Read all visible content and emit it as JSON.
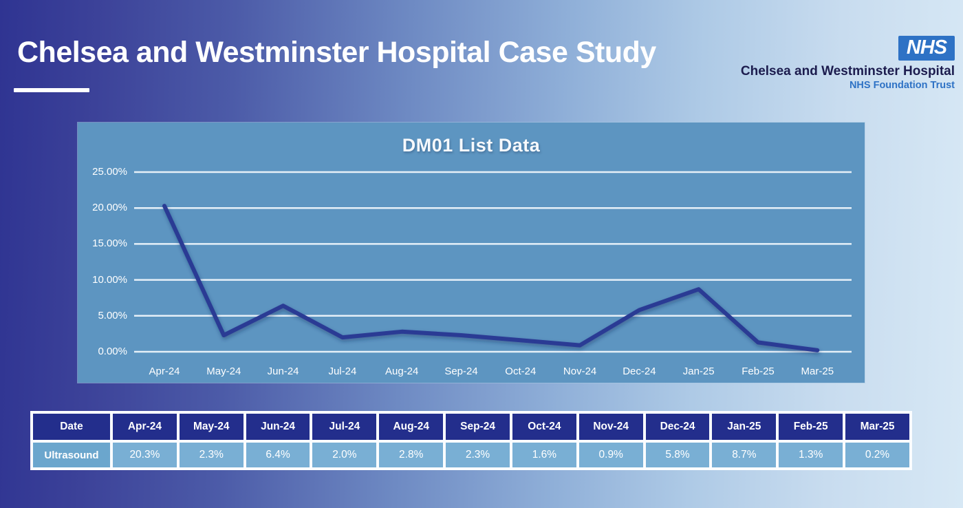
{
  "slide": {
    "title": "Chelsea and Westminster Hospital Case Study"
  },
  "nhs_logo": {
    "acronym": "NHS",
    "org_name": "Chelsea and Westminster Hospital",
    "org_subtitle": "NHS Foundation Trust",
    "logo_color": "#2e72c5"
  },
  "chart_data": {
    "type": "line",
    "title": "DM01 List Data",
    "categories": [
      "Apr-24",
      "May-24",
      "Jun-24",
      "Jul-24",
      "Aug-24",
      "Sep-24",
      "Oct-24",
      "Nov-24",
      "Dec-24",
      "Jan-25",
      "Feb-25",
      "Mar-25"
    ],
    "series": [
      {
        "name": "Ultrasound",
        "values": [
          20.3,
          2.3,
          6.4,
          2.0,
          2.8,
          2.3,
          1.6,
          0.9,
          5.8,
          8.7,
          1.3,
          0.2
        ]
      }
    ],
    "xlabel": "",
    "ylabel": "",
    "ylim": [
      0,
      25
    ],
    "ytick_labels": [
      "25.00%",
      "20.00%",
      "15.00%",
      "10.00%",
      "5.00%",
      "0.00%"
    ],
    "ytick_values": [
      25,
      20,
      15,
      10,
      5,
      0
    ],
    "grid": true,
    "legend": "none",
    "line_color": "#2b3a94",
    "plot_bg": "#5d95c1"
  },
  "table": {
    "header_label": "Date",
    "row_label": "Ultrasound",
    "columns": [
      "Apr-24",
      "May-24",
      "Jun-24",
      "Jul-24",
      "Aug-24",
      "Sep-24",
      "Oct-24",
      "Nov-24",
      "Dec-24",
      "Jan-25",
      "Feb-25",
      "Mar-25"
    ],
    "values": [
      "20.3%",
      "2.3%",
      "6.4%",
      "2.0%",
      "2.8%",
      "2.3%",
      "1.6%",
      "0.9%",
      "5.8%",
      "8.7%",
      "1.3%",
      "0.2%"
    ],
    "header_bg": "#232e8c",
    "label_cell_bg": "#6ba6cd",
    "value_cell_bg": "#79afd4"
  }
}
